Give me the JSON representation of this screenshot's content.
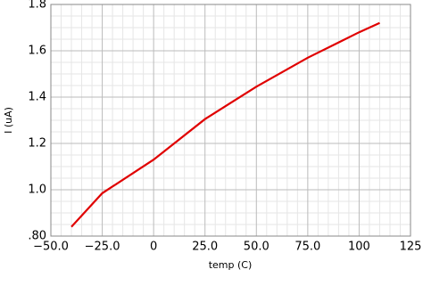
{
  "chart_data": {
    "type": "line",
    "xlabel": "temp (C)",
    "ylabel": "I (uA)",
    "x": [
      -40,
      -25,
      0,
      25,
      50,
      75,
      100,
      110
    ],
    "series": [
      {
        "color": "#e00000",
        "values": [
          0.84,
          0.985,
          1.13,
          1.305,
          1.445,
          1.57,
          1.68,
          1.72
        ]
      }
    ],
    "xlim": [
      -50,
      125
    ],
    "xticks": [
      {
        "value": -50,
        "label": "−50.0"
      },
      {
        "value": -25,
        "label": "−25.0"
      },
      0,
      {
        "value": 25,
        "label": "25.0"
      },
      {
        "value": 50,
        "label": "50.0"
      },
      {
        "value": 75,
        "label": "75.0"
      },
      100,
      125
    ],
    "ylim": [
      0.8,
      1.8
    ],
    "yticks": [
      {
        "value": 0.8,
        "label": ".80"
      },
      {
        "value": 1.0,
        "label": "1.0"
      },
      {
        "value": 1.2,
        "label": "1.2"
      },
      {
        "value": 1.4,
        "label": "1.4"
      },
      {
        "value": 1.6,
        "label": "1.6"
      },
      {
        "value": 1.8,
        "label": "1.8"
      }
    ],
    "grid": true
  }
}
